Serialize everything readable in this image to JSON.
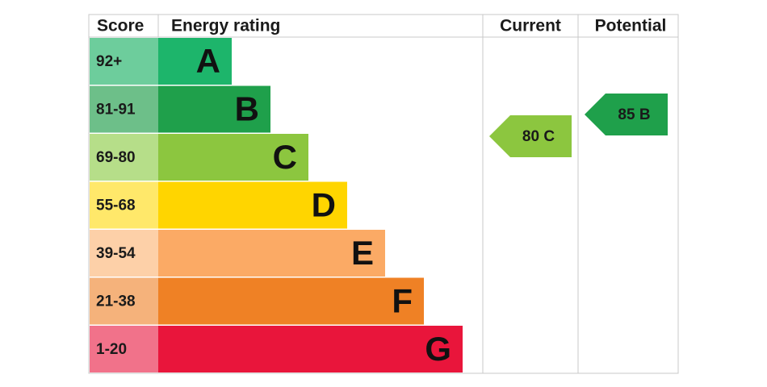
{
  "headers": {
    "score": "Score",
    "rating": "Energy rating",
    "current": "Current",
    "potential": "Potential"
  },
  "bands": [
    {
      "score": "92+",
      "letter": "A",
      "color": "#1db56b",
      "score_color": "#6dcd9c"
    },
    {
      "score": "81-91",
      "letter": "B",
      "color": "#1fa04b",
      "score_color": "#6dbf89"
    },
    {
      "score": "69-80",
      "letter": "C",
      "color": "#8cc63f",
      "score_color": "#b6de89"
    },
    {
      "score": "55-68",
      "letter": "D",
      "color": "#ffd500",
      "score_color": "#ffe86a"
    },
    {
      "score": "39-54",
      "letter": "E",
      "color": "#fbaa65",
      "score_color": "#fdd0a8"
    },
    {
      "score": "21-38",
      "letter": "F",
      "color": "#ef8125",
      "score_color": "#f5b27b"
    },
    {
      "score": "1-20",
      "letter": "G",
      "color": "#e9153b",
      "score_color": "#f1728a"
    }
  ],
  "current": {
    "value": 80,
    "label": "80 C",
    "color": "#8cc63f"
  },
  "potential": {
    "value": 85,
    "label": "85 B",
    "color": "#1fa04b"
  }
}
